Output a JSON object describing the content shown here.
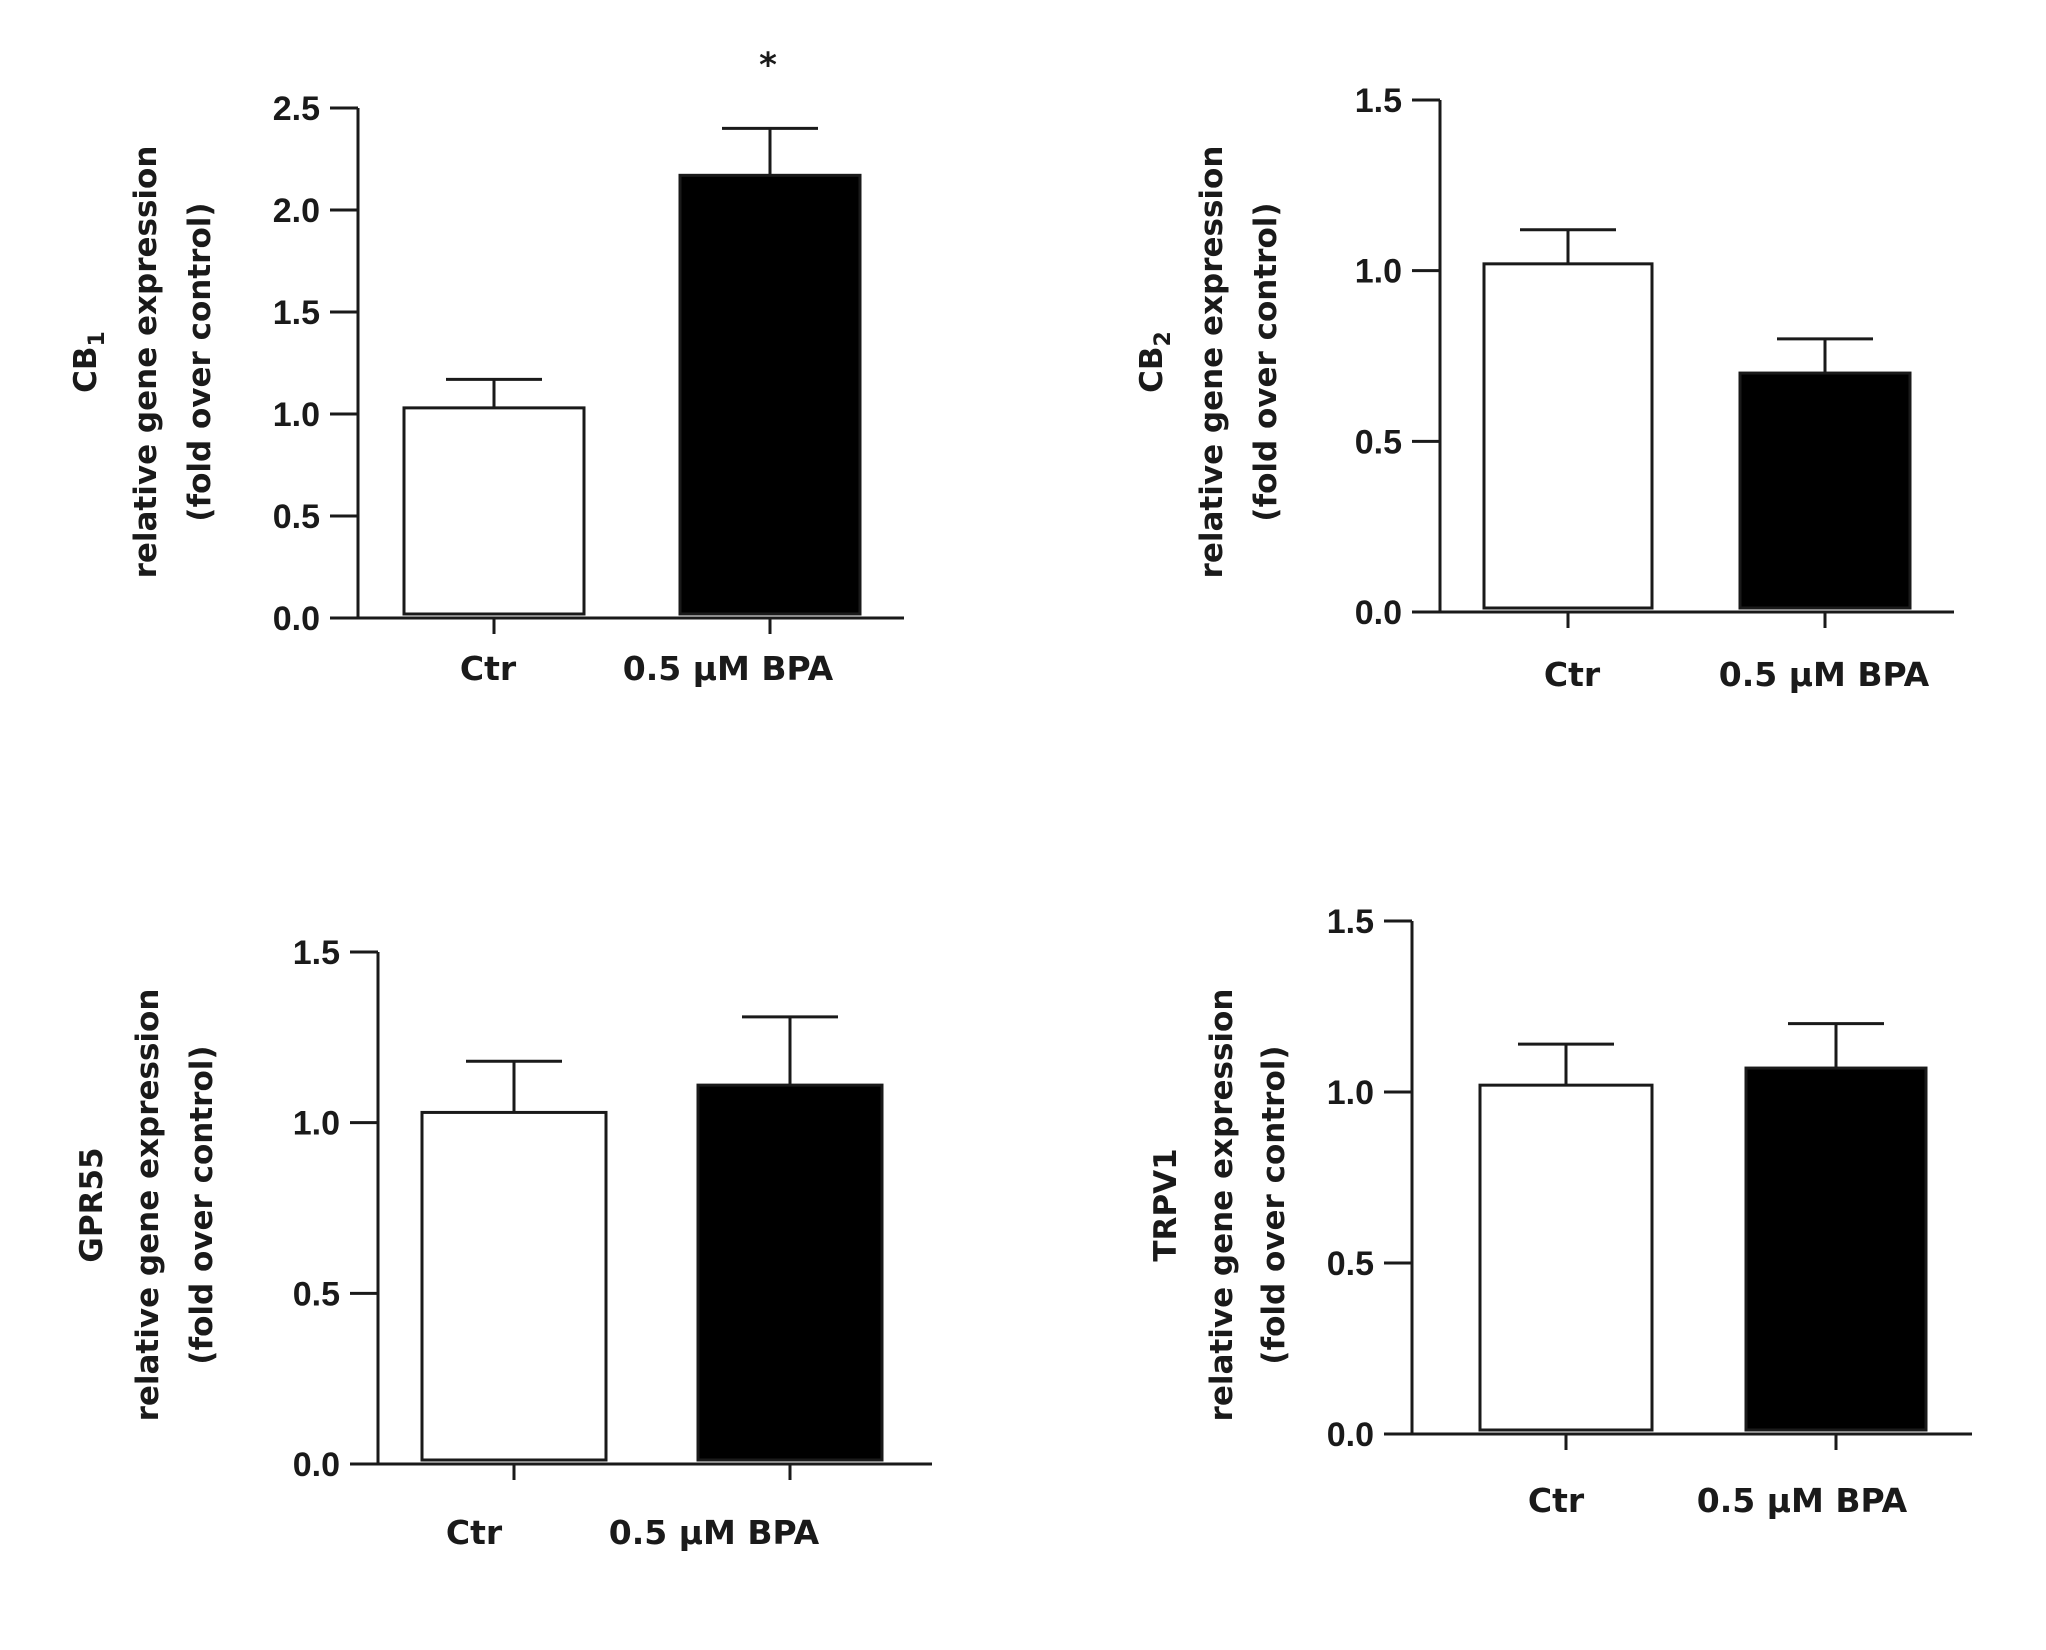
{
  "chart_data": [
    {
      "type": "bar",
      "panel": "top-left",
      "categories": [
        "Ctr",
        "0.5  μM BPA"
      ],
      "values": [
        1.03,
        2.17
      ],
      "errors": [
        0.14,
        0.23
      ],
      "bar_colors": [
        "#ffffff",
        "#000000"
      ],
      "ylim": [
        0,
        2.5
      ],
      "yticks": [
        "0.0",
        "0.5",
        "1.0",
        "1.5",
        "2.0",
        "2.5"
      ],
      "ylabel_gene": "CB",
      "ylabel_gene_sub": "1",
      "ylabel_line2": "relative gene expression",
      "ylabel_line3": "(fold over control)",
      "significance": [
        "",
        "*"
      ]
    },
    {
      "type": "bar",
      "panel": "top-right",
      "categories": [
        "Ctr",
        "0.5  μM BPA"
      ],
      "values": [
        1.02,
        0.7
      ],
      "errors": [
        0.1,
        0.1
      ],
      "bar_colors": [
        "#ffffff",
        "#000000"
      ],
      "ylim": [
        0,
        1.5
      ],
      "yticks": [
        "0.0",
        "0.5",
        "1.0",
        "1.5"
      ],
      "ylabel_gene": "CB",
      "ylabel_gene_sub": "2",
      "ylabel_line2": "relative gene expression",
      "ylabel_line3": "(fold over control)",
      "significance": [
        "",
        ""
      ]
    },
    {
      "type": "bar",
      "panel": "bottom-left",
      "categories": [
        "Ctr",
        "0.5  μM BPA"
      ],
      "values": [
        1.03,
        1.11
      ],
      "errors": [
        0.15,
        0.2
      ],
      "bar_colors": [
        "#ffffff",
        "#000000"
      ],
      "ylim": [
        0,
        1.5
      ],
      "yticks": [
        "0.0",
        "0.5",
        "1.0",
        "1.5"
      ],
      "ylabel_gene": "GPR55",
      "ylabel_gene_sub": "",
      "ylabel_line2": "relative gene expression",
      "ylabel_line3": "(fold over control)",
      "significance": [
        "",
        ""
      ]
    },
    {
      "type": "bar",
      "panel": "bottom-right",
      "categories": [
        "Ctr",
        "0.5  μM BPA"
      ],
      "values": [
        1.02,
        1.07
      ],
      "errors": [
        0.12,
        0.13
      ],
      "bar_colors": [
        "#ffffff",
        "#000000"
      ],
      "ylim": [
        0,
        1.5
      ],
      "yticks": [
        "0.0",
        "0.5",
        "1.0",
        "1.5"
      ],
      "ylabel_gene": "TRPV1",
      "ylabel_gene_sub": "",
      "ylabel_line2": "relative gene expression",
      "ylabel_line3": "(fold over control)",
      "significance": [
        "",
        ""
      ]
    }
  ]
}
